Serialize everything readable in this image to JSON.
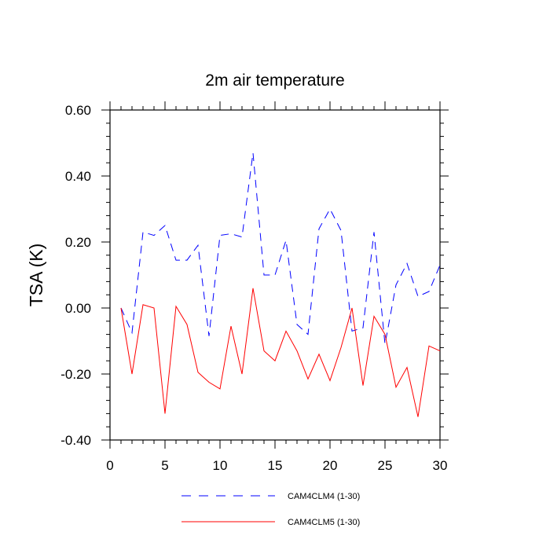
{
  "chart_data": {
    "type": "line",
    "title": "2m air temperature",
    "xlabel": "",
    "ylabel": "TSA  (K)",
    "xlim": [
      0,
      30
    ],
    "ylim": [
      -0.4,
      0.6
    ],
    "x_ticks": [
      0,
      5,
      10,
      15,
      20,
      25,
      30
    ],
    "x_tick_labels": [
      "0",
      "5",
      "10",
      "15",
      "20",
      "25",
      "30"
    ],
    "y_ticks": [
      -0.4,
      -0.2,
      0.0,
      0.2,
      0.4,
      0.6
    ],
    "y_tick_labels": [
      "-0.40",
      "-0.20",
      "0.00",
      "0.20",
      "0.40",
      "0.60"
    ],
    "legend_position": "bottom-center",
    "x": [
      1,
      2,
      3,
      4,
      5,
      6,
      7,
      8,
      9,
      10,
      11,
      12,
      13,
      14,
      15,
      16,
      17,
      18,
      19,
      20,
      21,
      22,
      23,
      24,
      25,
      26,
      27,
      28,
      29,
      30
    ],
    "series": [
      {
        "name": "CAM4CLM4 (1-30)",
        "color": "#0000ff",
        "dash": "dashed",
        "values": [
          0.0,
          -0.075,
          0.23,
          0.22,
          0.25,
          0.145,
          0.145,
          0.19,
          -0.085,
          0.22,
          0.225,
          0.215,
          0.47,
          0.1,
          0.1,
          0.205,
          -0.05,
          -0.08,
          0.24,
          0.3,
          0.235,
          -0.07,
          -0.06,
          0.23,
          -0.11,
          0.07,
          0.135,
          0.035,
          0.05,
          0.13
        ]
      },
      {
        "name": "CAM4CLM5 (1-30)",
        "color": "#ff0000",
        "dash": "solid",
        "values": [
          0.0,
          -0.2,
          0.01,
          0.0,
          -0.32,
          0.005,
          -0.05,
          -0.195,
          -0.225,
          -0.245,
          -0.055,
          -0.2,
          0.06,
          -0.13,
          -0.16,
          -0.07,
          -0.13,
          -0.215,
          -0.14,
          -0.22,
          -0.12,
          0.0,
          -0.235,
          -0.025,
          -0.08,
          -0.24,
          -0.18,
          -0.33,
          -0.115,
          -0.13
        ]
      }
    ]
  }
}
